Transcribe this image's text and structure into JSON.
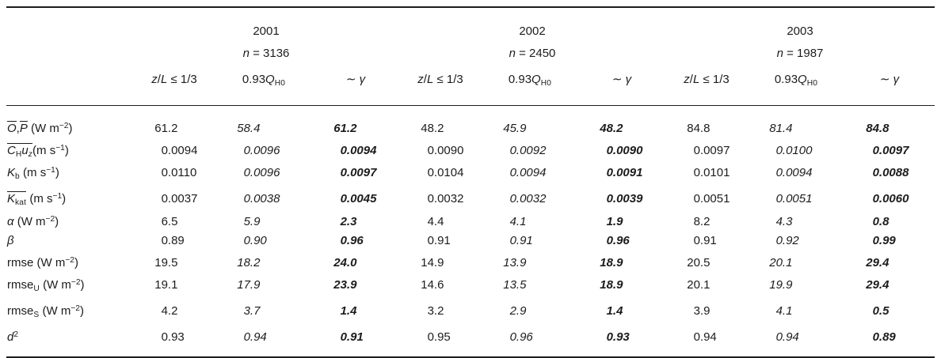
{
  "page": {
    "background": "#ffffff",
    "text_color": "#1c1c1c",
    "rule_color": "#1c1c1c"
  },
  "table": {
    "column_style_sequence": [
      "plain",
      "italic",
      "bold-italic"
    ],
    "year_groups": [
      {
        "year": "2001",
        "n_value": "3136",
        "n_parts": [
          {
            "t": "n",
            "s": "i"
          },
          {
            "t": " = 3136"
          }
        ]
      },
      {
        "year": "2002",
        "n_value": "2450",
        "n_parts": [
          {
            "t": "n",
            "s": "i"
          },
          {
            "t": " = 2450"
          }
        ]
      },
      {
        "year": "2003",
        "n_value": "1987",
        "n_parts": [
          {
            "t": "n",
            "s": "i"
          },
          {
            "t": " = 1987"
          }
        ]
      }
    ],
    "col_headers": [
      {
        "name": "zL-ratio-header",
        "parts": [
          {
            "t": "z",
            "s": "i"
          },
          {
            "t": "/"
          },
          {
            "t": "L",
            "s": "i"
          },
          {
            "t": " ≤ 1/3"
          }
        ]
      },
      {
        "name": "qh0-header",
        "parts": [
          {
            "t": "0.93"
          },
          {
            "t": "Q",
            "s": "i"
          },
          {
            "t": "H0",
            "s": "sub"
          }
        ]
      },
      {
        "name": "gamma-header",
        "parts": [
          {
            "t": "∼ "
          },
          {
            "t": "γ",
            "s": "i"
          }
        ]
      }
    ],
    "rows": [
      {
        "label_parts": [
          {
            "t": "O",
            "s": "i ov"
          },
          {
            "t": ","
          },
          {
            "t": "P",
            "s": "i ov"
          },
          {
            "t": " (W m"
          },
          {
            "t": "−2",
            "s": "sup"
          },
          {
            "t": ")"
          }
        ],
        "values": [
          "61.2",
          "58.4",
          "61.2",
          "48.2",
          "45.9",
          "48.2",
          "84.8",
          "81.4",
          "84.8"
        ]
      },
      {
        "label_parts": [
          {
            "s": "ov",
            "parts": [
              {
                "t": "C",
                "s": "i"
              },
              {
                "t": "H",
                "s": "sub"
              },
              {
                "t": "u",
                "s": "i"
              },
              {
                "t": "z",
                "s": "sub i"
              }
            ]
          },
          {
            "t": "(m s"
          },
          {
            "t": "−1",
            "s": "sup"
          },
          {
            "t": ")"
          }
        ],
        "values": [
          "0.0094",
          "0.0096",
          "0.0094",
          "0.0090",
          "0.0092",
          "0.0090",
          "0.0097",
          "0.0100",
          "0.0097"
        ]
      },
      {
        "label_parts": [
          {
            "t": "K",
            "s": "i"
          },
          {
            "t": "b",
            "s": "sub"
          },
          {
            "t": " (m s"
          },
          {
            "t": "−1",
            "s": "sup"
          },
          {
            "t": ")"
          }
        ],
        "values": [
          "0.0110",
          "0.0096",
          "0.0097",
          "0.0104",
          "0.0094",
          "0.0091",
          "0.0101",
          "0.0094",
          "0.0088"
        ]
      },
      {
        "label_parts": [
          {
            "s": "ov",
            "parts": [
              {
                "t": "K",
                "s": "i"
              },
              {
                "t": "kat",
                "s": "sub"
              }
            ]
          },
          {
            "t": " (m s"
          },
          {
            "t": "−1",
            "s": "sup"
          },
          {
            "t": ")"
          }
        ],
        "values": [
          "0.0037",
          "0.0038",
          "0.0045",
          "0.0032",
          "0.0032",
          "0.0039",
          "0.0051",
          "0.0051",
          "0.0060"
        ]
      },
      {
        "label_parts": [
          {
            "t": "α",
            "s": "i"
          },
          {
            "t": " (W m"
          },
          {
            "t": "−2",
            "s": "sup"
          },
          {
            "t": ")"
          }
        ],
        "values": [
          "6.5",
          "5.9",
          "2.3",
          "4.4",
          "4.1",
          "1.9",
          "8.2",
          "4.3",
          "0.8"
        ]
      },
      {
        "label_parts": [
          {
            "t": "β",
            "s": "i"
          }
        ],
        "values": [
          "0.89",
          "0.90",
          "0.96",
          "0.91",
          "0.91",
          "0.96",
          "0.91",
          "0.92",
          "0.99"
        ]
      },
      {
        "label_parts": [
          {
            "t": "rmse (W m"
          },
          {
            "t": "−2",
            "s": "sup"
          },
          {
            "t": ")"
          }
        ],
        "values": [
          "19.5",
          "18.2",
          "24.0",
          "14.9",
          "13.9",
          "18.9",
          "20.5",
          "20.1",
          "29.4"
        ]
      },
      {
        "label_parts": [
          {
            "t": "rmse"
          },
          {
            "t": "U",
            "s": "sub"
          },
          {
            "t": " (W m"
          },
          {
            "t": "−2",
            "s": "sup"
          },
          {
            "t": ")"
          }
        ],
        "values": [
          "19.1",
          "17.9",
          "23.9",
          "14.6",
          "13.5",
          "18.9",
          "20.1",
          "19.9",
          "29.4"
        ]
      },
      {
        "label_parts": [
          {
            "t": "rmse"
          },
          {
            "t": "S",
            "s": "sub"
          },
          {
            "t": " (W m"
          },
          {
            "t": "−2",
            "s": "sup"
          },
          {
            "t": ")"
          }
        ],
        "values": [
          "4.2",
          "3.7",
          "1.4",
          "3.2",
          "2.9",
          "1.4",
          "3.9",
          "4.1",
          "0.5"
        ]
      },
      {
        "label_parts": [
          {
            "t": "d",
            "s": "i"
          },
          {
            "t": "2",
            "s": "sup"
          }
        ],
        "values": [
          "0.93",
          "0.94",
          "0.91",
          "0.95",
          "0.96",
          "0.93",
          "0.94",
          "0.94",
          "0.89"
        ]
      }
    ]
  }
}
